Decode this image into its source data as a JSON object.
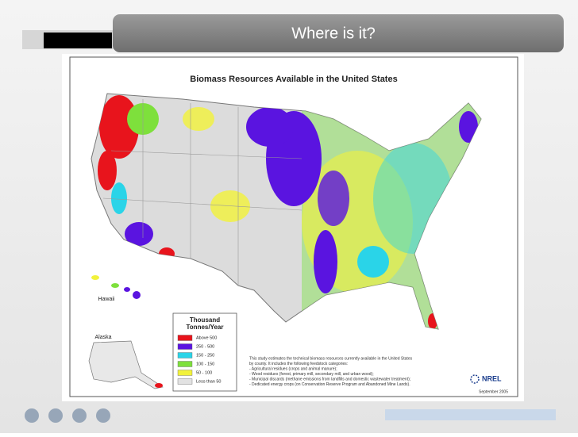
{
  "slide": {
    "title": "Where is it?"
  },
  "map": {
    "title": "Biomass Resources Available in the United States",
    "insets": [
      "Hawaii",
      "Alaska"
    ],
    "legend": {
      "title": [
        "Thousand",
        "Tonnes/Year"
      ],
      "items": [
        {
          "label": "Above 500",
          "color": "#e8141c"
        },
        {
          "label": "250 - 500",
          "color": "#5a14e0"
        },
        {
          "label": "150 - 250",
          "color": "#2ad4e8"
        },
        {
          "label": "100 - 150",
          "color": "#7ee03c"
        },
        {
          "label": "50 - 100",
          "color": "#f2f23a"
        },
        {
          "label": "Less than 50",
          "color": "#e2e2e2"
        }
      ]
    },
    "notes": [
      "This study estimates the technical biomass resources currently available in the United States",
      "by county. It includes the following feedstock categories:",
      "- Agricultural residues (crops and animal manure);",
      "- Wood residues (forest, primary mill, secondary mill, and urban wood);",
      "- Municipal discards (methane emissions from landfills and domestic wastewater treatment);",
      "- Dedicated energy crops (on Conservation Reserve Program and Abandoned Mine Lands)."
    ],
    "logo": "NREL",
    "date": "September 2005"
  }
}
